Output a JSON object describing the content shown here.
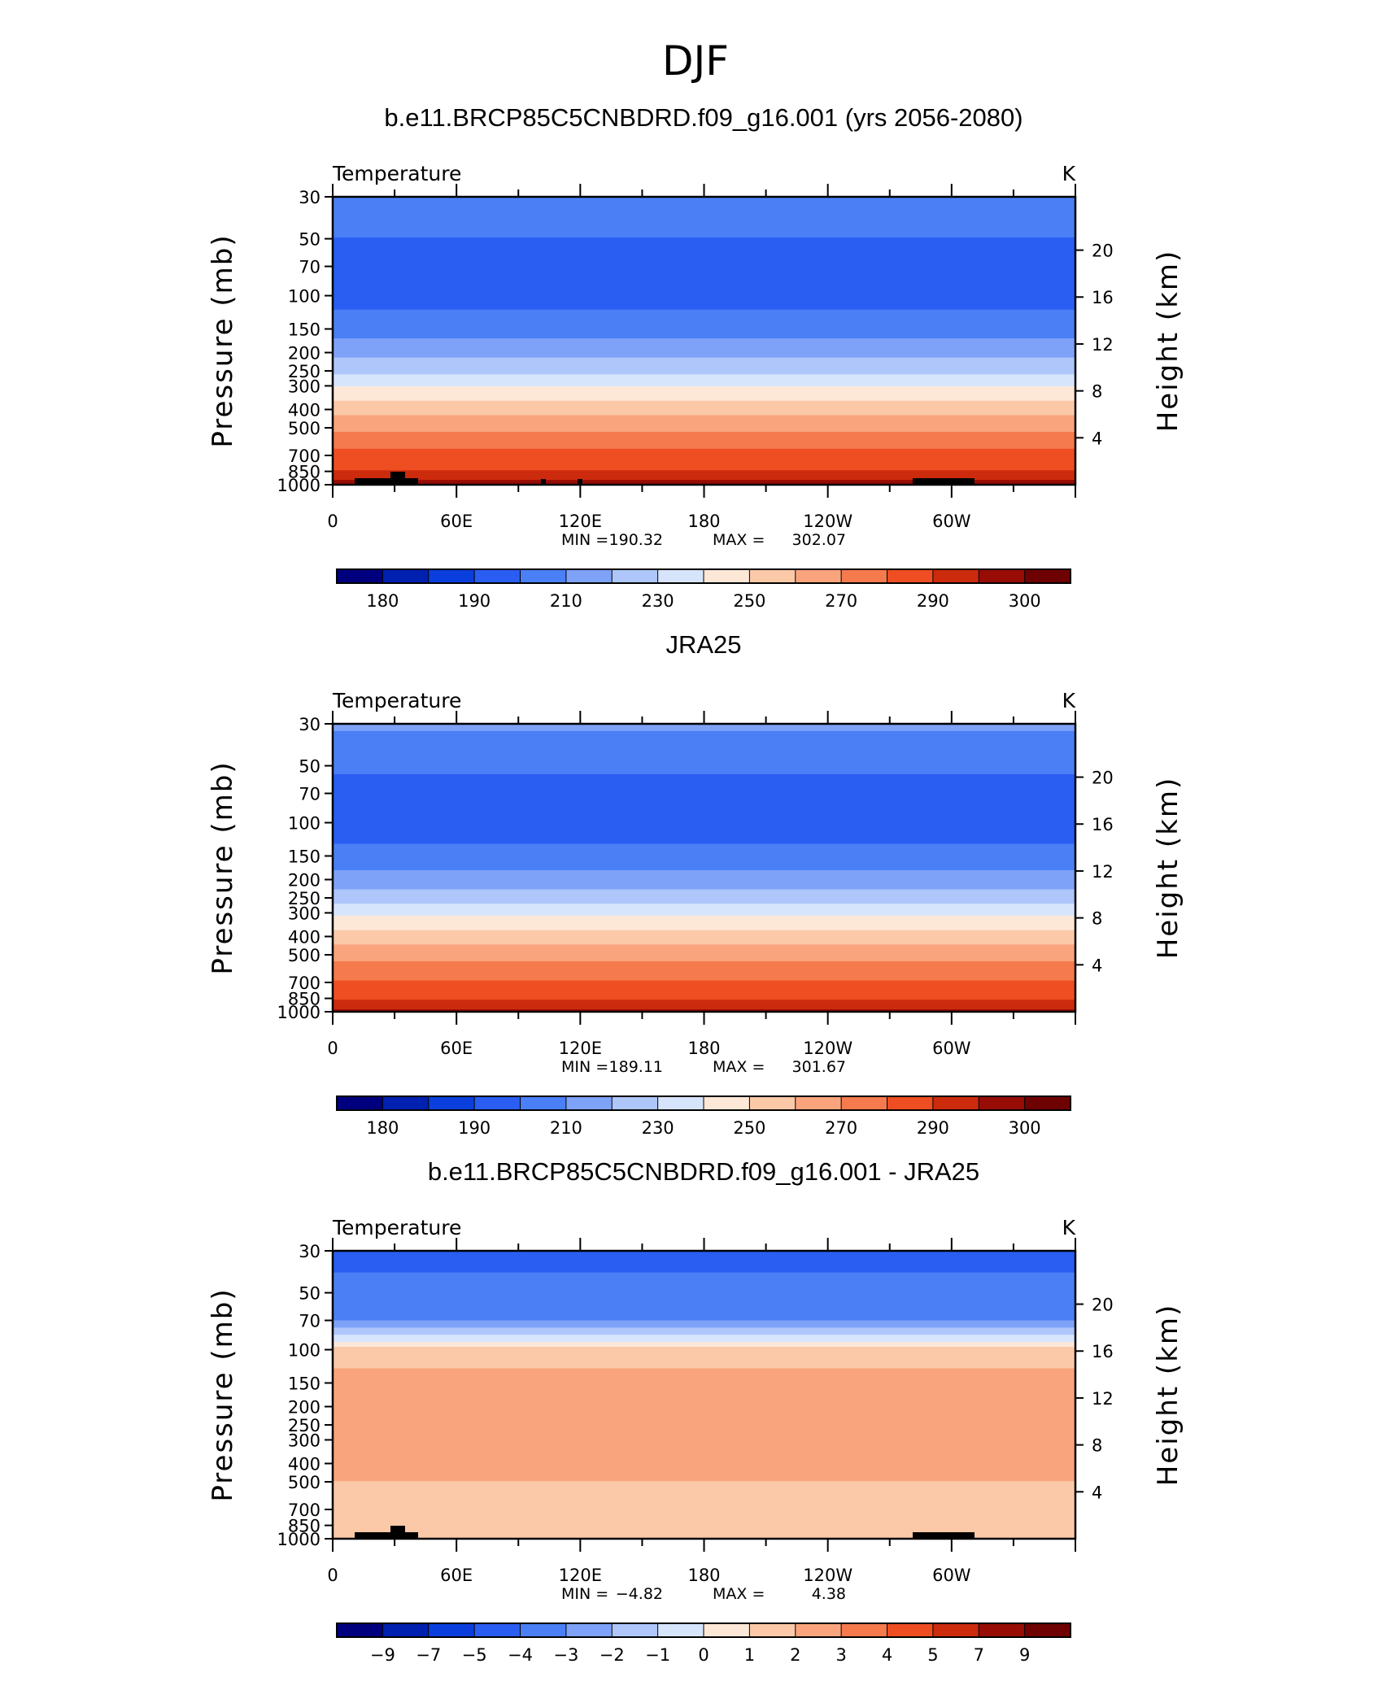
{
  "page": {
    "title": "DJF",
    "colors": {
      "temperature_levels": [
        "#00007e",
        "#0020b0",
        "#0a3fdd",
        "#2a5df2",
        "#4a7ff6",
        "#7ea2f8",
        "#aec6fa",
        "#d7e5fc",
        "#fde8d8",
        "#fbc9a8",
        "#f9a47c",
        "#f57a4e",
        "#ee4e22",
        "#cc2b0d",
        "#970d06",
        "#6e0202"
      ],
      "land_mask": "#000000"
    }
  },
  "chart_data": [
    {
      "type": "heatmap",
      "title": "b.e11.BRCP85C5CNBDRD.f09_g16.001 (yrs 2056-2080)",
      "left_label": "Temperature",
      "right_label": "K",
      "ylabel": "Pressure  (mb)",
      "ylabel_right": "Height  (km)",
      "y_scale": "log",
      "ylim": [
        1000,
        30
      ],
      "y_ticks": [
        "30",
        "50",
        "70",
        "100",
        "150",
        "200",
        "250",
        "300",
        "400",
        "500",
        "700",
        "850",
        "1000"
      ],
      "y_ticks_right": [
        "20",
        "16",
        "12",
        "8",
        "4"
      ],
      "x_ticks": [
        "0",
        "60E",
        "120E",
        "180",
        "120W",
        "60W"
      ],
      "min_label": "MIN =",
      "min_value": "190.32",
      "max_label": "MAX =",
      "max_value": "302.07",
      "colorbar_ticks": [
        "180",
        "190",
        "210",
        "230",
        "250",
        "270",
        "290",
        "300"
      ],
      "colorbar_levels": [
        175,
        180,
        185,
        190,
        200,
        210,
        220,
        230,
        240,
        250,
        260,
        270,
        280,
        290,
        295,
        300
      ],
      "profile": [
        {
          "p": 30,
          "v": 208
        },
        {
          "p": 50,
          "v": 200
        },
        {
          "p": 70,
          "v": 195
        },
        {
          "p": 100,
          "v": 196
        },
        {
          "p": 150,
          "v": 206
        },
        {
          "p": 200,
          "v": 216
        },
        {
          "p": 250,
          "v": 228
        },
        {
          "p": 300,
          "v": 240
        },
        {
          "p": 400,
          "v": 256
        },
        {
          "p": 500,
          "v": 268
        },
        {
          "p": 700,
          "v": 283
        },
        {
          "p": 850,
          "v": 291
        },
        {
          "p": 1000,
          "v": 298
        }
      ]
    },
    {
      "type": "heatmap",
      "title": "JRA25",
      "left_label": "Temperature",
      "right_label": "K",
      "ylabel": "Pressure  (mb)",
      "ylabel_right": "Height  (km)",
      "y_scale": "log",
      "ylim": [
        1000,
        30
      ],
      "y_ticks": [
        "30",
        "50",
        "70",
        "100",
        "150",
        "200",
        "250",
        "300",
        "400",
        "500",
        "700",
        "850",
        "1000"
      ],
      "y_ticks_right": [
        "20",
        "16",
        "12",
        "8",
        "4"
      ],
      "x_ticks": [
        "0",
        "60E",
        "120E",
        "180",
        "120W",
        "60W"
      ],
      "min_label": "MIN =",
      "min_value": "189.11",
      "max_label": "MAX =",
      "max_value": "301.67",
      "colorbar_ticks": [
        "180",
        "190",
        "210",
        "230",
        "250",
        "270",
        "290",
        "300"
      ],
      "colorbar_levels": [
        175,
        180,
        185,
        190,
        200,
        210,
        220,
        230,
        240,
        250,
        260,
        270,
        280,
        290,
        295,
        300
      ],
      "profile": [
        {
          "p": 30,
          "v": 212
        },
        {
          "p": 50,
          "v": 202
        },
        {
          "p": 70,
          "v": 196
        },
        {
          "p": 100,
          "v": 193
        },
        {
          "p": 150,
          "v": 204
        },
        {
          "p": 200,
          "v": 214
        },
        {
          "p": 250,
          "v": 226
        },
        {
          "p": 300,
          "v": 238
        },
        {
          "p": 400,
          "v": 254
        },
        {
          "p": 500,
          "v": 266
        },
        {
          "p": 700,
          "v": 281
        },
        {
          "p": 850,
          "v": 289
        },
        {
          "p": 1000,
          "v": 296
        }
      ]
    },
    {
      "type": "heatmap",
      "title": "b.e11.BRCP85C5CNBDRD.f09_g16.001 - JRA25",
      "left_label": "Temperature",
      "right_label": "K",
      "ylabel": "Pressure  (mb)",
      "ylabel_right": "Height  (km)",
      "y_scale": "log",
      "ylim": [
        1000,
        30
      ],
      "y_ticks": [
        "30",
        "50",
        "70",
        "100",
        "150",
        "200",
        "250",
        "300",
        "400",
        "500",
        "700",
        "850",
        "1000"
      ],
      "y_ticks_right": [
        "20",
        "16",
        "12",
        "8",
        "4"
      ],
      "x_ticks": [
        "0",
        "60E",
        "120E",
        "180",
        "120W",
        "60W"
      ],
      "min_label": "MIN =",
      "min_value": "−4.82",
      "max_label": "MAX =",
      "max_value": "4.38",
      "colorbar_ticks": [
        "−9",
        "−7",
        "−5",
        "−4",
        "−3",
        "−2",
        "−1",
        "0",
        "1",
        "2",
        "3",
        "4",
        "5",
        "7",
        "9"
      ],
      "colorbar_levels": [
        -10,
        -9,
        -7,
        -5,
        -4,
        -3,
        -2,
        -1,
        0,
        1,
        2,
        3,
        4,
        5,
        7,
        9
      ],
      "profile": [
        {
          "p": 30,
          "v": -4.4
        },
        {
          "p": 50,
          "v": -3.6
        },
        {
          "p": 70,
          "v": -3.0
        },
        {
          "p": 100,
          "v": 1.3
        },
        {
          "p": 150,
          "v": 2.5
        },
        {
          "p": 200,
          "v": 2.7
        },
        {
          "p": 250,
          "v": 2.9
        },
        {
          "p": 300,
          "v": 2.8
        },
        {
          "p": 400,
          "v": 2.3
        },
        {
          "p": 500,
          "v": 2.0
        },
        {
          "p": 700,
          "v": 1.2
        },
        {
          "p": 850,
          "v": 1.6
        },
        {
          "p": 1000,
          "v": 1.8
        }
      ]
    }
  ]
}
